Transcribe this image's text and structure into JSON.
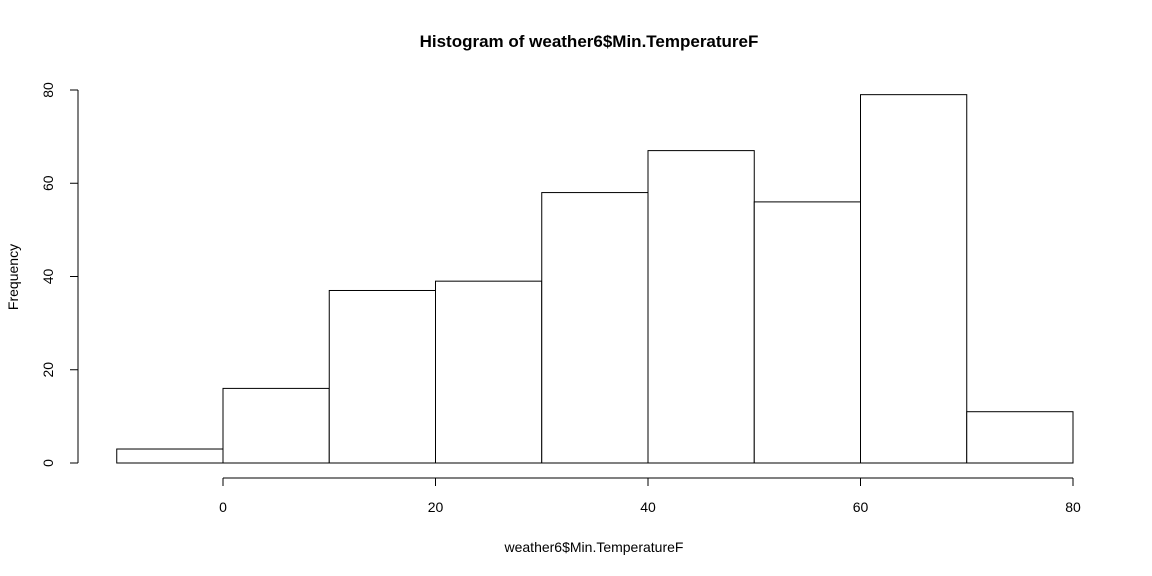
{
  "chart_data": {
    "type": "bar",
    "title": "Histogram of weather6$Min.TemperatureF",
    "xlabel": "weather6$Min.TemperatureF",
    "ylabel": "Frequency",
    "bins": [
      {
        "start": -10,
        "end": 0,
        "count": 3
      },
      {
        "start": 0,
        "end": 10,
        "count": 16
      },
      {
        "start": 10,
        "end": 20,
        "count": 37
      },
      {
        "start": 20,
        "end": 30,
        "count": 39
      },
      {
        "start": 30,
        "end": 40,
        "count": 58
      },
      {
        "start": 40,
        "end": 50,
        "count": 67
      },
      {
        "start": 50,
        "end": 60,
        "count": 56
      },
      {
        "start": 60,
        "end": 70,
        "count": 79
      },
      {
        "start": 70,
        "end": 80,
        "count": 11
      }
    ],
    "xlim": [
      -10,
      80
    ],
    "ylim": [
      0,
      80
    ],
    "xticks": [
      0,
      20,
      40,
      60,
      80
    ],
    "yticks": [
      0,
      20,
      40,
      60,
      80
    ],
    "grid": false,
    "bar_fill": "#ffffff",
    "bar_stroke": "#000000"
  }
}
